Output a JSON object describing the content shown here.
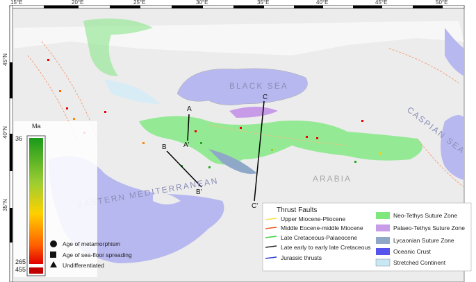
{
  "map": {
    "lon_labels": [
      "15°E",
      "20°E",
      "25°E",
      "30°E",
      "35°E",
      "40°E",
      "45°E",
      "50°E"
    ],
    "lat_labels": [
      "45°N",
      "40°N",
      "35°N"
    ],
    "place_labels": [
      "BLACK SEA",
      "CASPIAN SEA",
      "ARABIA",
      "EASTERN MEDITERRANEAN"
    ],
    "section_labels": [
      "A",
      "A'",
      "B",
      "B'",
      "C",
      "C'"
    ]
  },
  "age_scale": {
    "title": "Ma",
    "ticks": [
      36,
      265,
      455
    ]
  },
  "symbol_legend": [
    "Age of metamorphism",
    "Age of sea-floor spreading",
    "Undifferentiated"
  ],
  "thrust_legend": {
    "title": "Thrust Faults",
    "items": [
      "Upper Miocene-Pliocene",
      "Middle Eocene-middle Miocene",
      "Late Cretaceous-Palaeocene",
      "Late early to early late Cretaceous",
      "Jurassic thrusts"
    ]
  },
  "zone_legend": [
    "Neo-Tethys Suture Zone",
    "Palaeo-Tethys Suture Zone",
    "Lycaonian Suture Zone",
    "Oceanic Crust",
    "Stretched Continent"
  ]
}
